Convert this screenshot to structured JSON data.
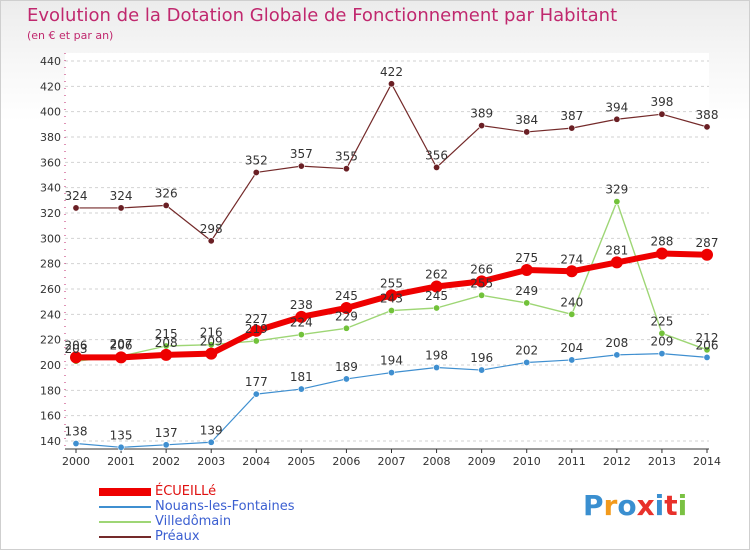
{
  "header": {
    "title": "Evolution de la Dotation Globale de Fonctionnement par Habitant",
    "subtitle": "(en € et par an)"
  },
  "logo": {
    "text": "Proxiti",
    "colors": [
      "#3a8fd0",
      "#f29a1c",
      "#3a8fd0",
      "#e8312b",
      "#3a8fd0",
      "#e8312b",
      "#7ac143"
    ]
  },
  "chart_data": {
    "type": "line",
    "title": "Evolution de la Dotation Globale de Fonctionnement par Habitant",
    "subtitle": "(en € et par an)",
    "xlabel": "",
    "ylabel": "",
    "x": [
      "2000",
      "2001",
      "2002",
      "2003",
      "2004",
      "2005",
      "2006",
      "2007",
      "2008",
      "2009",
      "2010",
      "2011",
      "2012",
      "2013",
      "2014"
    ],
    "ylim": [
      140,
      440
    ],
    "yticks": [
      140,
      160,
      180,
      200,
      220,
      240,
      260,
      280,
      300,
      320,
      340,
      360,
      380,
      400,
      420,
      440
    ],
    "grid": "horizontal-dashed",
    "legend": "bottom-left",
    "series": [
      {
        "name": "Nouans-les-Fontaines",
        "color": "#3f8fd0",
        "point_color": "#3f8fd0",
        "width": 1.2,
        "marker": 3.2,
        "values": [
          138,
          135,
          137,
          139,
          177,
          181,
          189,
          194,
          198,
          196,
          202,
          204,
          208,
          209,
          206
        ],
        "labels": [
          "138",
          "135",
          "137",
          "139",
          "177",
          "181",
          "189",
          "194",
          "198",
          "196",
          "202",
          "204",
          "208",
          "209",
          "206"
        ]
      },
      {
        "name": "Villedômain",
        "color": "#9ed675",
        "point_color": "#72c23a",
        "width": 1.4,
        "marker": 3.2,
        "values": [
          203,
          207,
          215,
          216,
          219,
          224,
          229,
          243,
          245,
          255,
          249,
          240,
          329,
          225,
          212
        ],
        "labels": [
          "203",
          "207",
          "215",
          "216",
          "219",
          "224",
          "229",
          "243",
          "245",
          "255",
          "249",
          "240",
          "329",
          "225",
          "212"
        ]
      },
      {
        "name": "Préaux",
        "color": "#742a2a",
        "point_color": "#6a1f24",
        "width": 1.2,
        "marker": 3.2,
        "values": [
          324,
          324,
          326,
          298,
          352,
          357,
          355,
          422,
          356,
          389,
          384,
          387,
          394,
          398,
          388
        ],
        "labels": [
          "324",
          "324",
          "326",
          "298",
          "352",
          "357",
          "355",
          "422",
          "356",
          "389",
          "384",
          "387",
          "394",
          "398",
          "388"
        ]
      },
      {
        "name": "ÉCUEILLé",
        "color": "#ee0000",
        "point_color": "#ee0000",
        "width": 6,
        "marker": 6,
        "values": [
          206,
          206,
          208,
          209,
          227,
          238,
          245,
          255,
          262,
          266,
          275,
          274,
          281,
          288,
          287
        ],
        "labels": [
          "206",
          "206",
          "208",
          "209",
          "227",
          "238",
          "245",
          "255",
          "262",
          "266",
          "275",
          "274",
          "281",
          "288",
          "287"
        ]
      }
    ],
    "legend_entries": [
      {
        "name": "ÉCUEILLé",
        "color": "#ee0000",
        "thick": true
      },
      {
        "name": "Nouans-les-Fontaines",
        "color": "#3f8fd0",
        "thick": false
      },
      {
        "name": "Villedômain",
        "color": "#9ed675",
        "thick": false
      },
      {
        "name": "Préaux",
        "color": "#742a2a",
        "thick": false
      }
    ],
    "axis_color": "#c0286e",
    "grid_color": "#d2d2d2"
  }
}
